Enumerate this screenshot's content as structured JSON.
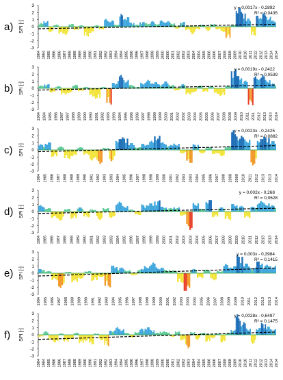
{
  "figure": {
    "colors": {
      "wet": "#3ea6dc",
      "wet_strong": "#1e6fb8",
      "near_normal": "#5ecb9a",
      "dry": "#f2e43a",
      "dry_strong": "#f29a2a",
      "extreme_dry": "#e8402a",
      "trend": "#000000",
      "zero_line": "#2e9e4a",
      "axis": "#000000",
      "grid": "#cfcfcf"
    }
  },
  "chart_data": [
    {
      "type": "bar",
      "panel_label": "a)",
      "ylabel": "SPI [-]",
      "ylim": [
        -3,
        3
      ],
      "yticks": [
        3,
        2,
        1,
        0,
        -1,
        -2,
        -3
      ],
      "xticks": [
        "1984",
        "1984",
        "1985",
        "1986",
        "1986",
        "1987",
        "1988",
        "1988",
        "1989",
        "1990",
        "1990",
        "1991",
        "1992",
        "1992",
        "1993",
        "1994",
        "1994",
        "1995",
        "1996",
        "1996",
        "1997",
        "1998",
        "1998",
        "1999",
        "2000",
        "2000",
        "2001",
        "2002",
        "2002",
        "2003",
        "2004",
        "2004",
        "2005",
        "2006",
        "2006",
        "2007",
        "2008",
        "2008",
        "2009",
        "2010",
        "2010",
        "2011",
        "2012",
        "2012",
        "2013",
        "2014",
        "2014"
      ],
      "trend": {
        "equation": "y = 0,0017x - 0,2892",
        "r2": "R² = 0,0435"
      },
      "segments": [
        [
          0,
          0.5
        ],
        [
          1,
          0.8
        ],
        [
          2,
          -0.8
        ],
        [
          3,
          0.3
        ],
        [
          4,
          -1.0
        ],
        [
          5,
          -1.2
        ],
        [
          6,
          0.4
        ],
        [
          7,
          -0.5
        ],
        [
          8,
          0.2
        ],
        [
          9,
          -1.4
        ],
        [
          10,
          -0.9
        ],
        [
          11,
          0.2
        ],
        [
          12,
          -0.4
        ],
        [
          13,
          1.1
        ],
        [
          14,
          0.9
        ],
        [
          15,
          0.3
        ],
        [
          16,
          1.8
        ],
        [
          17,
          1.4
        ],
        [
          18,
          0.6
        ],
        [
          19,
          0.3
        ],
        [
          20,
          0.7
        ],
        [
          21,
          0.5
        ],
        [
          22,
          0.8
        ],
        [
          23,
          0.4
        ],
        [
          24,
          0.9
        ],
        [
          25,
          0.8
        ],
        [
          26,
          0.5
        ],
        [
          27,
          -0.3
        ],
        [
          28,
          0.7
        ],
        [
          29,
          -0.5
        ],
        [
          30,
          -1.1
        ],
        [
          31,
          -0.4
        ],
        [
          32,
          0.3
        ],
        [
          33,
          -0.6
        ],
        [
          34,
          0.4
        ],
        [
          35,
          -0.4
        ],
        [
          36,
          -0.8
        ],
        [
          37,
          -1.6
        ],
        [
          38,
          0.3
        ],
        [
          39,
          2.8
        ],
        [
          40,
          2.1
        ],
        [
          41,
          1.2
        ],
        [
          42,
          -1.3
        ],
        [
          43,
          1.6
        ],
        [
          44,
          2.0
        ],
        [
          45,
          1.4
        ],
        [
          46,
          0.9
        ]
      ]
    },
    {
      "type": "bar",
      "panel_label": "b)",
      "ylabel": "SPI [-]",
      "ylim": [
        -3,
        3
      ],
      "yticks": [
        3,
        2,
        1,
        0,
        -1,
        -2,
        -3
      ],
      "xticks": [
        "1984",
        "1984",
        "1985",
        "1986",
        "1987",
        "1987",
        "1988",
        "1989",
        "1990",
        "1990",
        "1991",
        "1992",
        "1993",
        "1993",
        "1994",
        "1995",
        "1996",
        "1996",
        "1997",
        "1998",
        "1999",
        "1999",
        "2000",
        "2001",
        "2002",
        "2002",
        "2003",
        "2004",
        "2005",
        "2005",
        "2006",
        "2007",
        "2008",
        "2008",
        "2009",
        "2010",
        "2011",
        "2011",
        "2012",
        "2013",
        "2014",
        "2014"
      ],
      "trend": {
        "equation": "y = 0,0019x - 0,2422",
        "r2": "R² = 0,0539"
      },
      "segments": [
        [
          0,
          0.4
        ],
        [
          1,
          0.6
        ],
        [
          2,
          -0.6
        ],
        [
          3,
          0.3
        ],
        [
          4,
          -0.9
        ],
        [
          5,
          -0.7
        ],
        [
          6,
          0.5
        ],
        [
          7,
          -0.4
        ],
        [
          8,
          0.2
        ],
        [
          9,
          -1.2
        ],
        [
          10,
          -1.5
        ],
        [
          11,
          0.2
        ],
        [
          12,
          -2.3
        ],
        [
          13,
          0.8
        ],
        [
          14,
          1.9
        ],
        [
          15,
          1.2
        ],
        [
          16,
          0.5
        ],
        [
          17,
          0.2
        ],
        [
          18,
          0.8
        ],
        [
          19,
          1.2
        ],
        [
          20,
          0.9
        ],
        [
          21,
          0.6
        ],
        [
          22,
          1.0
        ],
        [
          23,
          0.5
        ],
        [
          24,
          -0.3
        ],
        [
          25,
          0.6
        ],
        [
          26,
          -0.9
        ],
        [
          27,
          -0.6
        ],
        [
          28,
          0.4
        ],
        [
          29,
          -0.5
        ],
        [
          30,
          0.3
        ],
        [
          31,
          -0.8
        ],
        [
          32,
          -1.1
        ],
        [
          33,
          0.4
        ],
        [
          34,
          2.7
        ],
        [
          35,
          1.8
        ],
        [
          36,
          1.1
        ],
        [
          37,
          -2.4
        ],
        [
          38,
          1.7
        ],
        [
          39,
          1.9
        ],
        [
          40,
          1.2
        ],
        [
          41,
          0.7
        ]
      ]
    },
    {
      "type": "bar",
      "panel_label": "c)",
      "ylabel": "SPI [-]",
      "ylim": [
        -3,
        3
      ],
      "yticks": [
        3,
        2,
        1,
        0,
        -1,
        -2,
        -3
      ],
      "xticks": [
        "1984",
        "1985",
        "1986",
        "1987",
        "1988",
        "1988",
        "1989",
        "1990",
        "1991",
        "1992",
        "1993",
        "1993",
        "1994",
        "1995",
        "1996",
        "1997",
        "1998",
        "1998",
        "1999",
        "2000",
        "2001",
        "2002",
        "2003",
        "2003",
        "2004",
        "2005",
        "2006",
        "2007",
        "2008",
        "2008",
        "2009",
        "2010",
        "2011",
        "2012",
        "2013",
        "2013",
        "2014"
      ],
      "trend": {
        "equation": "y = 0,0023x - 0,2425",
        "r2": "R² = 0,0882"
      },
      "segments": [
        [
          0,
          0.8
        ],
        [
          1,
          1.1
        ],
        [
          2,
          -1.0
        ],
        [
          3,
          0.5
        ],
        [
          4,
          -1.3
        ],
        [
          5,
          -0.9
        ],
        [
          6,
          0.4
        ],
        [
          7,
          -0.7
        ],
        [
          8,
          -1.5
        ],
        [
          9,
          -2.0
        ],
        [
          10,
          0.3
        ],
        [
          11,
          -1.6
        ],
        [
          12,
          1.6
        ],
        [
          13,
          1.8
        ],
        [
          14,
          1.0
        ],
        [
          15,
          0.4
        ],
        [
          16,
          0.9
        ],
        [
          17,
          1.3
        ],
        [
          18,
          2.0
        ],
        [
          19,
          1.1
        ],
        [
          20,
          0.7
        ],
        [
          21,
          0.9
        ],
        [
          22,
          -0.5
        ],
        [
          23,
          -1.9
        ],
        [
          24,
          0.8
        ],
        [
          25,
          -0.5
        ],
        [
          26,
          0.4
        ],
        [
          27,
          -0.6
        ],
        [
          28,
          -0.9
        ],
        [
          29,
          0.5
        ],
        [
          30,
          2.8
        ],
        [
          31,
          2.0
        ],
        [
          32,
          1.5
        ],
        [
          33,
          -2.2
        ],
        [
          34,
          1.6
        ],
        [
          35,
          1.9
        ],
        [
          36,
          1.3
        ]
      ]
    },
    {
      "type": "bar",
      "panel_label": "d)",
      "ylabel": "SPI [-]",
      "ylim": [
        -3,
        3
      ],
      "yticks": [
        3,
        2,
        1,
        0,
        -1,
        -2,
        -3
      ],
      "xticks": [
        "1984",
        "1985",
        "1986",
        "1987",
        "1988",
        "1988",
        "1989",
        "1990",
        "1991",
        "1992",
        "1993",
        "1993",
        "1994",
        "1995",
        "1996",
        "1997",
        "1998",
        "1998",
        "1999",
        "2000",
        "2001",
        "2002",
        "2003",
        "2003",
        "2004",
        "2005",
        "2006",
        "2007",
        "2008",
        "2008",
        "2009",
        "2010",
        "2011",
        "2012",
        "2013",
        "2013",
        "2014"
      ],
      "trend": {
        "equation": "y = 0,002x - 0,268",
        "r2": "R² = 0,0628"
      },
      "segments": [
        [
          0,
          0.9
        ],
        [
          1,
          0.5
        ],
        [
          2,
          -0.9
        ],
        [
          3,
          -1.3
        ],
        [
          4,
          0.4
        ],
        [
          5,
          -1.0
        ],
        [
          6,
          0.6
        ],
        [
          7,
          -0.8
        ],
        [
          8,
          0.3
        ],
        [
          9,
          -1.2
        ],
        [
          10,
          0.5
        ],
        [
          11,
          -0.9
        ],
        [
          12,
          1.4
        ],
        [
          13,
          0.8
        ],
        [
          14,
          0.3
        ],
        [
          15,
          -0.5
        ],
        [
          16,
          1.0
        ],
        [
          17,
          1.2
        ],
        [
          18,
          1.6
        ],
        [
          19,
          0.7
        ],
        [
          20,
          0.5
        ],
        [
          21,
          0.6
        ],
        [
          22,
          -0.6
        ],
        [
          23,
          -2.6
        ],
        [
          24,
          1.2
        ],
        [
          25,
          0.4
        ],
        [
          26,
          1.7
        ],
        [
          27,
          -0.8
        ],
        [
          28,
          0.6
        ],
        [
          29,
          -1.2
        ],
        [
          30,
          1.1
        ],
        [
          31,
          0.8
        ],
        [
          32,
          -0.9
        ],
        [
          33,
          0.7
        ],
        [
          34,
          1.5
        ],
        [
          35,
          1.2
        ],
        [
          36,
          0.9
        ]
      ]
    },
    {
      "type": "bar",
      "panel_label": "e)",
      "ylabel": "SPI [-]",
      "ylim": [
        -3,
        3
      ],
      "yticks": [
        3,
        2,
        1,
        0,
        -1,
        -2,
        -3
      ],
      "xticks": [
        "1984",
        "1985",
        "1986",
        "1987",
        "1988",
        "1988",
        "1989",
        "1990",
        "1991",
        "1992",
        "1993",
        "1994",
        "1995",
        "1996",
        "1997",
        "1998",
        "1998",
        "1999",
        "2000",
        "2001",
        "2002",
        "2003",
        "2003",
        "2004",
        "2005",
        "2006",
        "2007",
        "2008",
        "2009",
        "2009",
        "2010",
        "2011",
        "2012",
        "2013",
        "2013",
        "2014"
      ],
      "trend": {
        "equation": "y = 0,003x - 0,3984",
        "r2": "R² = 0,1415"
      },
      "segments": [
        [
          0,
          0.6
        ],
        [
          1,
          0.3
        ],
        [
          2,
          -1.0
        ],
        [
          3,
          -2.1
        ],
        [
          4,
          0.2
        ],
        [
          5,
          -1.3
        ],
        [
          6,
          -0.8
        ],
        [
          7,
          0.3
        ],
        [
          8,
          -1.1
        ],
        [
          9,
          -0.6
        ],
        [
          10,
          -2.0
        ],
        [
          11,
          1.1
        ],
        [
          12,
          0.8
        ],
        [
          13,
          0.4
        ],
        [
          14,
          -0.3
        ],
        [
          15,
          0.6
        ],
        [
          16,
          1.0
        ],
        [
          17,
          1.5
        ],
        [
          18,
          0.8
        ],
        [
          19,
          0.5
        ],
        [
          20,
          0.4
        ],
        [
          21,
          -1.4
        ],
        [
          22,
          -2.6
        ],
        [
          23,
          0.6
        ],
        [
          24,
          -0.7
        ],
        [
          25,
          0.5
        ],
        [
          26,
          -1.0
        ],
        [
          27,
          0.3
        ],
        [
          28,
          1.3
        ],
        [
          29,
          1.0
        ],
        [
          30,
          2.6
        ],
        [
          31,
          1.4
        ],
        [
          32,
          0.8
        ],
        [
          33,
          1.7
        ],
        [
          34,
          1.2
        ],
        [
          35,
          1.0
        ]
      ]
    },
    {
      "type": "bar",
      "panel_label": "f)",
      "ylabel": "SPI [-]",
      "ylim": [
        -3,
        3
      ],
      "yticks": [
        3,
        2,
        1,
        0,
        -1,
        -2,
        -3
      ],
      "xticks": [
        "1984",
        "1984",
        "1985",
        "1986",
        "1986",
        "1987",
        "1988",
        "1988",
        "1989",
        "1990",
        "1990",
        "1991",
        "1992",
        "1992",
        "1993",
        "1994",
        "1994",
        "1995",
        "1996",
        "1996",
        "1997",
        "1998",
        "1998",
        "1999",
        "2000",
        "2000",
        "2001",
        "2002",
        "2002",
        "2003",
        "2004",
        "2004",
        "2005",
        "2006",
        "2006",
        "2007",
        "2008",
        "2008",
        "2009",
        "2010",
        "2010",
        "2011",
        "2012",
        "2012",
        "2013",
        "2014",
        "2014"
      ],
      "trend": {
        "equation": "y = 0,0028x - 0,6497",
        "r2": "R² = 0,1475"
      },
      "segments": [
        [
          0,
          -0.3
        ],
        [
          1,
          0.5
        ],
        [
          2,
          -0.8
        ],
        [
          3,
          -1.1
        ],
        [
          4,
          0.2
        ],
        [
          5,
          -1.0
        ],
        [
          6,
          -0.6
        ],
        [
          7,
          0.3
        ],
        [
          8,
          -1.2
        ],
        [
          9,
          -0.9
        ],
        [
          10,
          -1.4
        ],
        [
          11,
          0.2
        ],
        [
          12,
          -0.8
        ],
        [
          13,
          -1.6
        ],
        [
          14,
          0.6
        ],
        [
          15,
          1.1
        ],
        [
          16,
          0.8
        ],
        [
          17,
          0.3
        ],
        [
          18,
          -0.4
        ],
        [
          19,
          0.4
        ],
        [
          20,
          0.9
        ],
        [
          21,
          1.1
        ],
        [
          22,
          0.7
        ],
        [
          23,
          0.3
        ],
        [
          24,
          0.5
        ],
        [
          25,
          0.4
        ],
        [
          26,
          -0.3
        ],
        [
          27,
          0.5
        ],
        [
          28,
          -0.8
        ],
        [
          29,
          -1.9
        ],
        [
          30,
          0.4
        ],
        [
          31,
          -0.7
        ],
        [
          32,
          0.3
        ],
        [
          33,
          -1.0
        ],
        [
          34,
          -0.5
        ],
        [
          35,
          0.2
        ],
        [
          36,
          -1.1
        ],
        [
          37,
          0.3
        ],
        [
          38,
          0.7
        ],
        [
          39,
          2.9
        ],
        [
          40,
          1.8
        ],
        [
          41,
          0.9
        ],
        [
          42,
          -1.3
        ],
        [
          43,
          1.0
        ],
        [
          44,
          1.7
        ],
        [
          45,
          1.2
        ],
        [
          46,
          0.8
        ]
      ]
    }
  ]
}
